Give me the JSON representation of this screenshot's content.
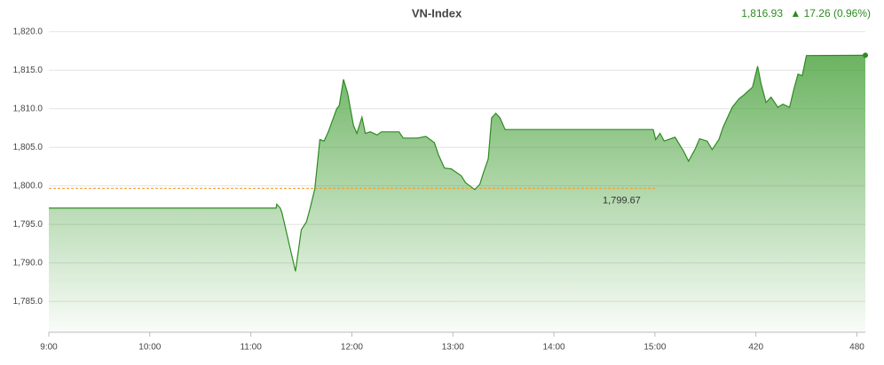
{
  "chart_data": {
    "type": "line",
    "title": "VN-Index",
    "last_value": "1,816.93",
    "change": "▲ 17.26 (0.96%)",
    "color": "#2e8b22",
    "x": [
      0,
      135,
      135.4,
      137.5,
      138.5,
      146.5,
      150,
      153,
      155,
      158,
      161,
      163.5,
      166,
      168.5,
      171,
      172.5,
      175,
      177.5,
      181,
      183,
      186,
      188,
      191,
      195,
      197.5,
      203,
      208,
      210.5,
      219,
      224,
      229,
      231.5,
      235,
      239,
      245,
      247.5,
      250,
      253,
      256,
      258,
      261,
      263,
      265.5,
      268,
      271,
      359,
      360.5,
      363,
      365.5,
      372,
      377,
      380,
      384,
      386.5,
      391,
      394,
      398,
      400.5,
      404,
      406,
      410,
      413,
      418,
      421,
      423,
      426,
      429,
      433,
      436,
      440,
      442.5,
      445,
      447.5,
      450,
      485
    ],
    "values": [
      1797.1,
      1797.1,
      1797.6,
      1797.1,
      1796.5,
      1788.9,
      1794.3,
      1795.3,
      1796.9,
      1799.6,
      1806,
      1805.8,
      1807,
      1808.5,
      1810,
      1810.4,
      1813.8,
      1812,
      1807.8,
      1806.8,
      1808.9,
      1806.8,
      1807,
      1806.6,
      1807,
      1807,
      1807,
      1806.2,
      1806.2,
      1806.4,
      1805.6,
      1804,
      1802.3,
      1802.2,
      1801.3,
      1800.4,
      1800,
      1799.5,
      1800.2,
      1801.6,
      1803.5,
      1808.8,
      1809.4,
      1808.8,
      1807.3,
      1807.3,
      1806,
      1806.8,
      1805.8,
      1806.3,
      1804.5,
      1803.2,
      1804.8,
      1806.1,
      1805.8,
      1804.7,
      1806,
      1807.6,
      1809.3,
      1810.2,
      1811.3,
      1811.8,
      1812.8,
      1815.5,
      1813.3,
      1810.8,
      1811.5,
      1810.2,
      1810.6,
      1810.2,
      1812.5,
      1814.5,
      1814.3,
      1816.9,
      1816.93
    ],
    "xlim": [
      0,
      485
    ],
    "xticks": [
      {
        "value": 0,
        "label": "9:00"
      },
      {
        "value": 60,
        "label": "10:00"
      },
      {
        "value": 120,
        "label": "11:00"
      },
      {
        "value": 180,
        "label": "12:00"
      },
      {
        "value": 240,
        "label": "13:00"
      },
      {
        "value": 300,
        "label": "14:00"
      },
      {
        "value": 360,
        "label": "15:00"
      },
      420,
      480
    ],
    "ylim": [
      1781,
      1821
    ],
    "yticks": [
      {
        "value": 1785,
        "label": "1,785.0"
      },
      {
        "value": 1790,
        "label": "1,790.0"
      },
      {
        "value": 1795,
        "label": "1,795.0"
      },
      {
        "value": 1800,
        "label": "1,800.0"
      },
      {
        "value": 1805,
        "label": "1,805.0"
      },
      {
        "value": 1810,
        "label": "1,810.0"
      },
      {
        "value": 1815,
        "label": "1,815.0"
      },
      {
        "value": 1820,
        "label": "1,820.0"
      }
    ],
    "grid": true,
    "reference_line": {
      "value": 1799.67,
      "label": "1,799.67",
      "x_end": 360,
      "color": "#f0a030"
    }
  }
}
